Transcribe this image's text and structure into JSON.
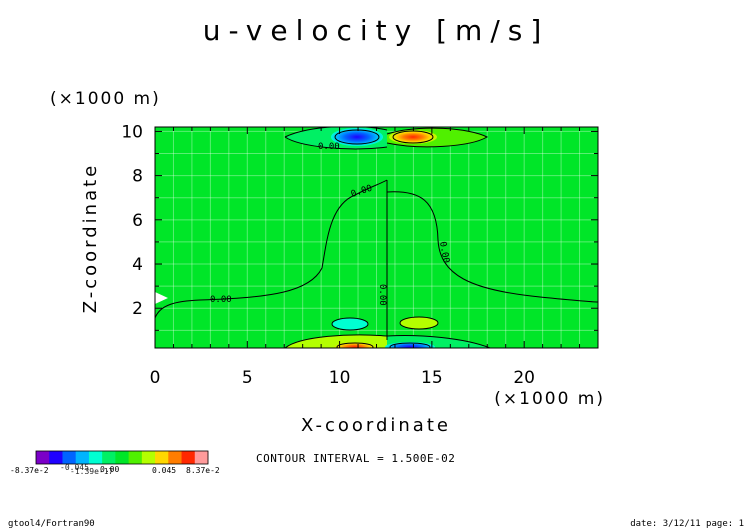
{
  "chart_data": {
    "type": "contour",
    "title": "u-velocity [m/s]",
    "xlabel": "X-coordinate",
    "ylabel": "Z-coordinate",
    "x_unit": "(×1000 m)",
    "y_unit": "(×1000 m)",
    "xlim": [
      0,
      24
    ],
    "ylim": [
      0.2,
      10.2
    ],
    "x_ticks": [
      0,
      5,
      10,
      15,
      20
    ],
    "y_ticks": [
      2,
      4,
      6,
      8,
      10
    ],
    "contour_label": "0.00",
    "contour_interval_text": "CONTOUR INTERVAL = 1.500E-02",
    "colorbar": {
      "colors": [
        "#7b00c8",
        "#1f00ff",
        "#0064ff",
        "#00b4ff",
        "#00ffd2",
        "#00f064",
        "#00e628",
        "#50f000",
        "#b4ff00",
        "#ffd700",
        "#ff7d00",
        "#ff2800",
        "#ff9b9b"
      ],
      "labels": [
        "-8.37e-2",
        "-0.045",
        "-1.39e-17",
        "0.00",
        "0.045",
        "8.37e-2"
      ]
    },
    "features": [
      {
        "x": 11,
        "z": 9.75,
        "sign": "negative"
      },
      {
        "x": 14,
        "z": 9.75,
        "sign": "positive"
      },
      {
        "x": 11,
        "z": 0.3,
        "sign": "positive"
      },
      {
        "x": 14,
        "z": 0.3,
        "sign": "negative"
      },
      {
        "x": 10.5,
        "z": 1.2,
        "sign": "negative"
      },
      {
        "x": 14.5,
        "z": 1.2,
        "sign": "positive"
      }
    ]
  },
  "footer": {
    "left": "gtool4/Fortran90",
    "right": "date: 3/12/11 page: 1"
  }
}
